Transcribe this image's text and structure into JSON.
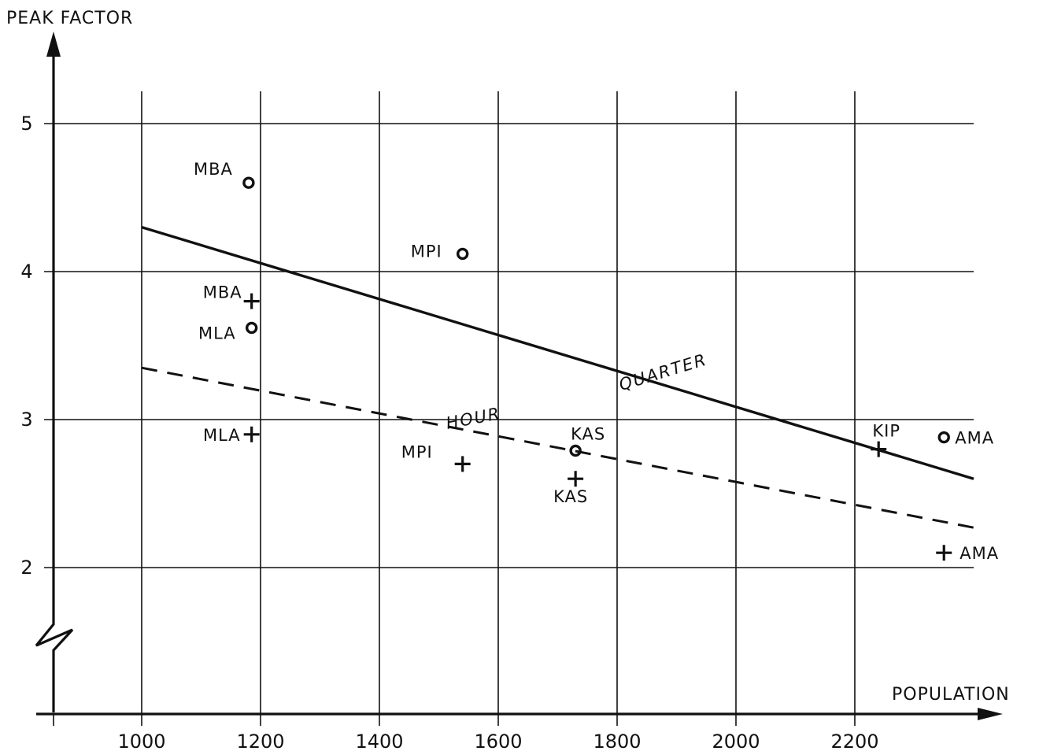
{
  "chart_data": {
    "type": "scatter",
    "title": "",
    "ylabel": "PEAK FACTOR",
    "xlabel": "POPULATION",
    "xlim": [
      850,
      2420
    ],
    "ylim": [
      0.95,
      5.6
    ],
    "axis_break_y": true,
    "grid": true,
    "x_ticks": [
      1000,
      1200,
      1400,
      1600,
      1800,
      2000,
      2200
    ],
    "y_ticks": [
      2,
      3,
      4,
      5
    ],
    "series": [
      {
        "name": "QUARTER",
        "kind": "line",
        "style": "solid",
        "points": [
          [
            1000,
            4.3
          ],
          [
            2400,
            2.6
          ]
        ]
      },
      {
        "name": "HOUR",
        "kind": "line",
        "style": "dashed",
        "points": [
          [
            1000,
            3.35
          ],
          [
            2400,
            2.27
          ]
        ]
      },
      {
        "kind": "points",
        "marker": "circle",
        "points": [
          {
            "label": "MBA",
            "x": 1180,
            "y": 4.6
          },
          {
            "label": "MPI",
            "x": 1540,
            "y": 4.12
          },
          {
            "label": "MLA",
            "x": 1185,
            "y": 3.62
          },
          {
            "label": "KAS",
            "x": 1730,
            "y": 2.79
          },
          {
            "label": "AMA",
            "x": 2350,
            "y": 2.88
          }
        ]
      },
      {
        "kind": "points",
        "marker": "plus",
        "points": [
          {
            "label": "MBA",
            "x": 1185,
            "y": 3.8
          },
          {
            "label": "MLA",
            "x": 1185,
            "y": 2.9
          },
          {
            "label": "MPI",
            "x": 1540,
            "y": 2.7
          },
          {
            "label": "KAS",
            "x": 1730,
            "y": 2.6
          },
          {
            "label": "KIP",
            "x": 2240,
            "y": 2.8
          },
          {
            "label": "AMA",
            "x": 2350,
            "y": 2.1
          }
        ]
      }
    ]
  }
}
